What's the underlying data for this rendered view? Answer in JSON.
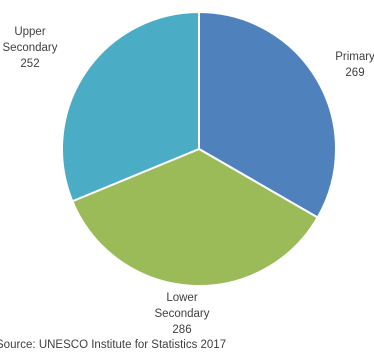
{
  "chart_data": {
    "type": "pie",
    "slices": [
      {
        "category": "Primary",
        "value": 269,
        "color": "#4F81BD",
        "label_lines": [
          "Primary",
          "269"
        ]
      },
      {
        "category": "Lower Secondary",
        "value": 286,
        "color": "#9BBB59",
        "label_lines": [
          "Lower",
          "Secondary",
          "286"
        ]
      },
      {
        "category": "Upper Secondary",
        "value": 252,
        "color": "#4BACC6",
        "label_lines": [
          "Upper",
          "Secondary",
          "252"
        ]
      }
    ],
    "start_angle_deg": 0,
    "direction": "clockwise",
    "legend": "none",
    "source_note": "Source: UNESCO Institute for Statistics 2017"
  }
}
